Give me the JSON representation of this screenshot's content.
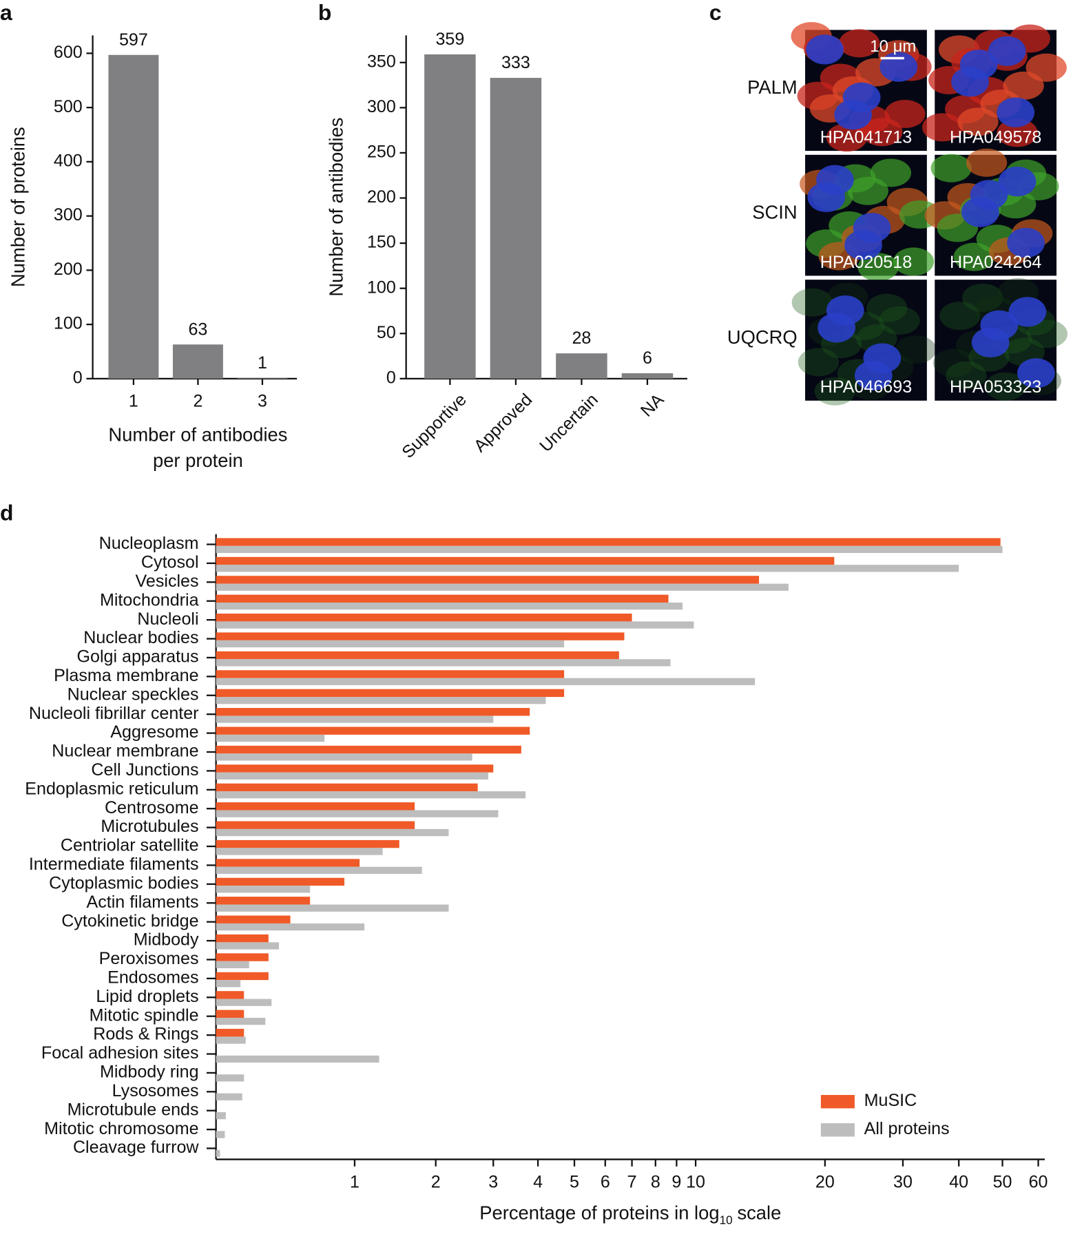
{
  "chart_data": [
    {
      "panel": "a",
      "type": "bar",
      "categories": [
        "1",
        "2",
        "3"
      ],
      "values": [
        597,
        63,
        1
      ],
      "color": "#808083",
      "ylim": [
        0,
        633
      ],
      "yticks": [
        0,
        100,
        200,
        300,
        400,
        500,
        600
      ],
      "ylabel": "Number of proteins",
      "xlabel": [
        "Number of antibodies",
        "per protein"
      ]
    },
    {
      "panel": "b",
      "type": "bar",
      "categories": [
        "Supportive",
        "Approved",
        "Uncertain",
        "NA"
      ],
      "values": [
        359,
        333,
        28,
        6
      ],
      "color": "#808083",
      "ylim": [
        0,
        380
      ],
      "yticks": [
        0,
        50,
        100,
        150,
        200,
        250,
        300,
        350
      ],
      "ylabel": "Number of antibodies",
      "xtick_rotation": -45
    },
    {
      "panel": "c",
      "type": "image-grid",
      "scale_bar": "10 μm",
      "rows": [
        {
          "label": "PALM",
          "images": [
            "HPA041713",
            "HPA049578"
          ]
        },
        {
          "label": "SCIN",
          "images": [
            "HPA020518",
            "HPA024264"
          ]
        },
        {
          "label": "UQCRQ",
          "images": [
            "HPA046693",
            "HPA053323"
          ]
        }
      ]
    },
    {
      "panel": "d",
      "type": "grouped_hbar",
      "xscale": "log1p",
      "legend": "lower right",
      "categories": [
        "Nucleoplasm",
        "Cytosol",
        "Vesicles",
        "Mitochondria",
        "Nucleoli",
        "Nuclear bodies",
        "Golgi apparatus",
        "Plasma membrane",
        "Nuclear speckles",
        "Nucleoli fibrillar center",
        "Aggresome",
        "Nuclear membrane",
        "Cell Junctions",
        "Endoplasmic reticulum",
        "Centrosome",
        "Microtubules",
        "Centriolar satellite",
        "Intermediate filaments",
        "Cytoplasmic bodies",
        "Actin filaments",
        "Cytokinetic bridge",
        "Midbody",
        "Peroxisomes",
        "Endosomes",
        "Lipid droplets",
        "Mitotic spindle",
        "Rods & Rings",
        "Focal adhesion sites",
        "Midbody ring",
        "Lysosomes",
        "Microtubule ends",
        "Mitotic chromosome",
        "Cleavage furrow"
      ],
      "series": [
        {
          "name": "MuSIC",
          "color": "#f05a28",
          "values": [
            49.5,
            21,
            14.1,
            8.6,
            7.0,
            6.7,
            6.5,
            4.7,
            4.7,
            3.8,
            3.8,
            3.6,
            3.0,
            2.7,
            1.7,
            1.7,
            1.5,
            1.05,
            0.9,
            0.6,
            0.45,
            0.3,
            0.3,
            0.3,
            0.15,
            0.15,
            0.15,
            null,
            null,
            null,
            null,
            null,
            null
          ]
        },
        {
          "name": "All proteins",
          "color": "#bdbdbd",
          "values": [
            50,
            40,
            16.5,
            9.3,
            9.9,
            4.7,
            8.7,
            13.8,
            4.2,
            3.0,
            0.72,
            2.6,
            2.9,
            3.7,
            3.1,
            2.2,
            1.3,
            1.8,
            0.6,
            2.2,
            1.1,
            0.37,
            0.18,
            0.13,
            0.32,
            0.28,
            0.16,
            1.26,
            0.15,
            0.14,
            0.05,
            0.045,
            0.02
          ]
        }
      ],
      "xlim": [
        0,
        62
      ],
      "xticks": [
        1,
        2,
        3,
        4,
        5,
        6,
        7,
        8,
        9,
        10,
        20,
        30,
        40,
        50,
        60
      ],
      "xlabel": {
        "text": "Percentage of proteins in log",
        "subscript": "10",
        "suffix": "scale"
      }
    }
  ]
}
